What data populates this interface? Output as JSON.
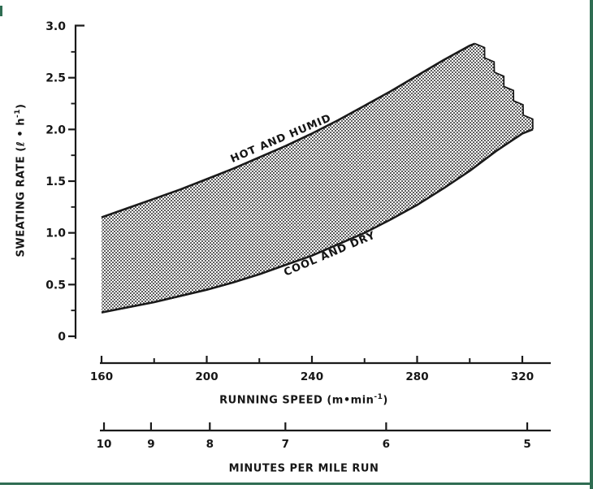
{
  "figure": {
    "background": "#ffffff",
    "ink_color": "#1a1a1a",
    "border_green": "#2f6d52"
  },
  "labels": {
    "y_title_pre": "SWEATING RATE (ℓ • h",
    "y_title_sup": "-1",
    "y_title_post": ")",
    "x_title_pre": "RUNNING SPEED (m•min",
    "x_title_sup": "-1",
    "x_title_post": ")",
    "pace_title": "MINUTES PER MILE RUN",
    "band_top_label": "HOT AND HUMID",
    "band_bottom_label": "COOL AND DRY"
  },
  "chart_data": {
    "type": "area",
    "title": "",
    "xlabel": "RUNNING SPEED (m•min-1)",
    "ylabel": "SWEATING RATE (ℓ•h-1)",
    "xlim": [
      160,
      331
    ],
    "ylim": [
      0,
      3.0
    ],
    "grid": false,
    "legend_position": "labels-on-curves",
    "series": [
      {
        "name": "HOT AND HUMID",
        "x": [
          160,
          170,
          180,
          190,
          200,
          210,
          220,
          230,
          240,
          250,
          260,
          270,
          280,
          290,
          300,
          302
        ],
        "y": [
          1.15,
          1.24,
          1.33,
          1.42,
          1.52,
          1.62,
          1.73,
          1.84,
          1.96,
          2.09,
          2.23,
          2.37,
          2.52,
          2.67,
          2.81,
          2.83
        ]
      },
      {
        "name": "COOL AND DRY",
        "x": [
          160,
          170,
          180,
          190,
          200,
          210,
          220,
          230,
          240,
          250,
          260,
          270,
          280,
          290,
          300,
          310,
          320,
          324
        ],
        "y": [
          0.23,
          0.28,
          0.33,
          0.39,
          0.45,
          0.52,
          0.6,
          0.69,
          0.78,
          0.89,
          1.0,
          1.13,
          1.27,
          1.43,
          1.6,
          1.79,
          1.96,
          2.0
        ]
      }
    ],
    "band_fill": "stipple-dot-pattern",
    "jagged_right_edge_teeth": 6,
    "x_ticks_major": [
      160,
      200,
      240,
      280,
      320
    ],
    "x_tick_labels": [
      "160",
      "200",
      "240",
      "280",
      "320"
    ],
    "x_ticks_minor": [
      180,
      220,
      260,
      300
    ],
    "y_ticks_major": [
      0,
      0.5,
      1.0,
      1.5,
      2.0,
      2.5,
      3.0
    ],
    "y_tick_labels": [
      "0",
      "0.5",
      "1.0",
      "1.5",
      "2.0",
      "2.5",
      "3.0"
    ],
    "y_ticks_minor": [
      0.25,
      0.75,
      1.25,
      1.75,
      2.25,
      2.75
    ],
    "pace_axis": {
      "title": "MINUTES PER MILE RUN",
      "ticks": [
        10,
        9,
        8,
        7,
        6,
        5
      ],
      "tick_labels": [
        "10",
        "9",
        "8",
        "7",
        "6",
        "5"
      ],
      "meters_per_mile": 1609.34
    }
  }
}
